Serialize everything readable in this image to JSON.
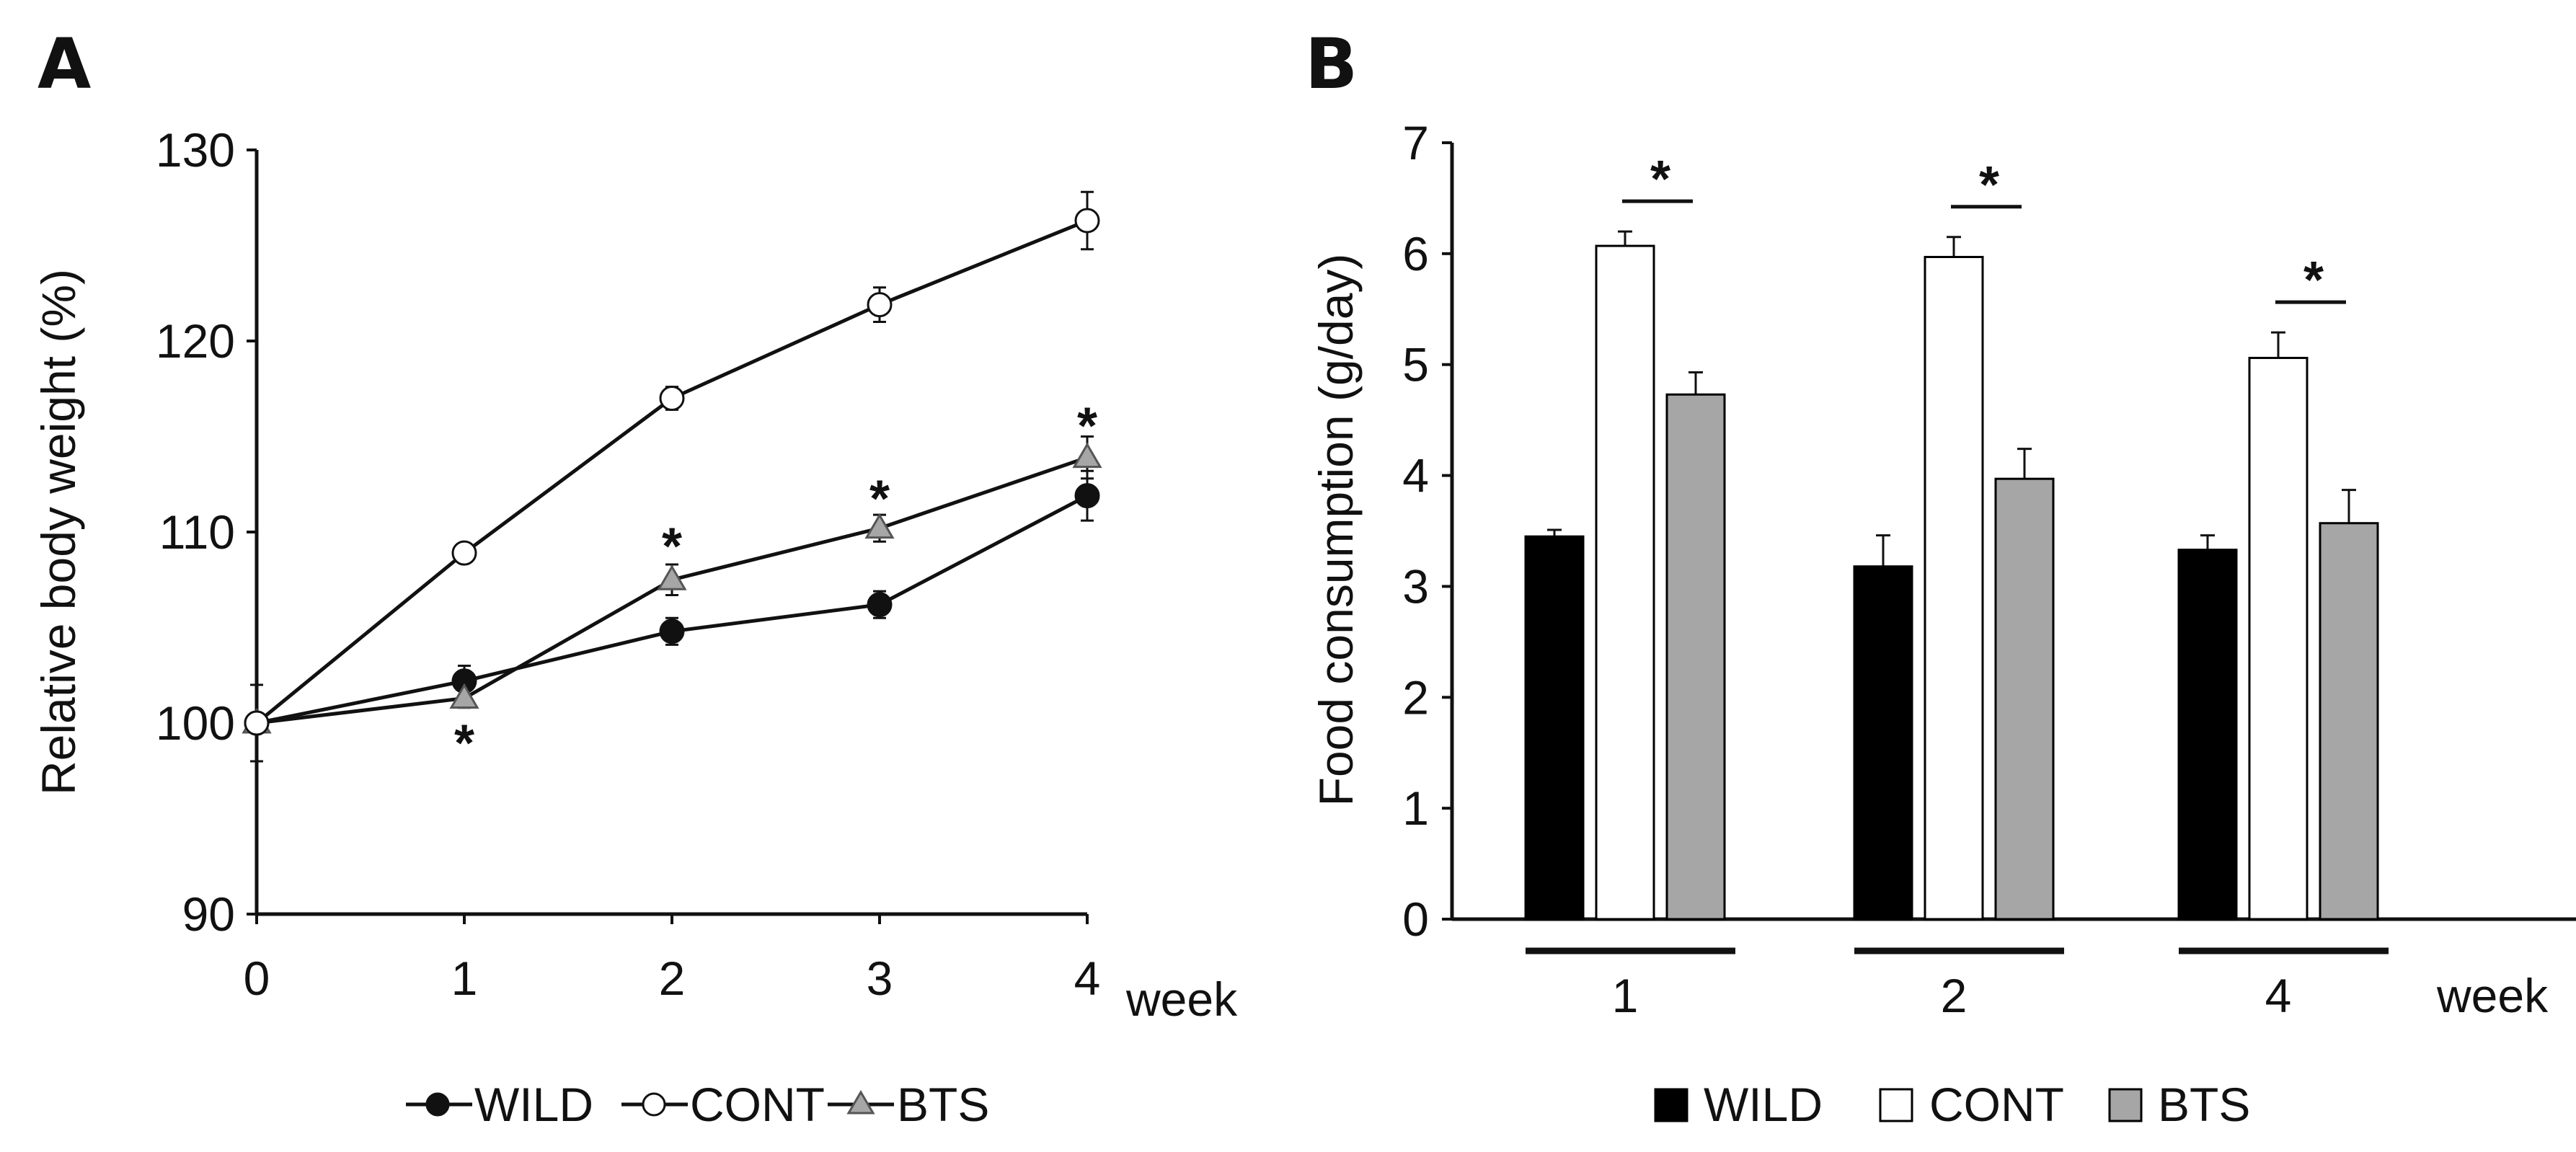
{
  "chart_data": [
    {
      "panel": "A",
      "type": "line",
      "xlabel": "week",
      "ylabel": "Relative body weight (%)",
      "ylim": [
        90,
        130
      ],
      "yticks": [
        90,
        100,
        110,
        120,
        130
      ],
      "xlim": [
        0,
        4
      ],
      "x": [
        0,
        1,
        2,
        3,
        4
      ],
      "x_tick_labels": [
        "0",
        "1",
        "2",
        "3",
        "4"
      ],
      "legend_position": "bottom-center",
      "series": [
        {
          "name": "WILD",
          "marker": "filled-circle",
          "color": "#111111",
          "values": [
            100,
            102.2,
            104.8,
            106.2,
            111.9
          ],
          "errors": [
            2.0,
            0.8,
            0.7,
            0.7,
            1.3
          ]
        },
        {
          "name": "CONT",
          "marker": "open-circle",
          "color": "#ffffff",
          "values": [
            100,
            108.9,
            117.0,
            121.9,
            126.3
          ],
          "errors": [
            2.0,
            0.3,
            0.6,
            0.9,
            1.5
          ]
        },
        {
          "name": "BTS",
          "marker": "gray-triangle",
          "color": "#a6a6a6",
          "values": [
            100,
            101.3,
            107.5,
            110.2,
            113.9
          ],
          "errors": [
            2.0,
            0.5,
            0.8,
            0.7,
            1.1
          ]
        }
      ],
      "annotations": [
        {
          "text": "*",
          "x": 1,
          "y": 99.3
        },
        {
          "text": "*",
          "x": 2,
          "y": 109.6
        },
        {
          "text": "*",
          "x": 3,
          "y": 112.1
        },
        {
          "text": "*",
          "x": 4,
          "y": 115.9
        }
      ]
    },
    {
      "panel": "B",
      "type": "bar",
      "xlabel": "week",
      "ylabel": "Food consumption (g/day)",
      "ylim": [
        0,
        7
      ],
      "yticks": [
        0,
        1,
        2,
        3,
        4,
        5,
        6,
        7
      ],
      "categories": [
        "1",
        "2",
        "4"
      ],
      "legend_position": "bottom-center",
      "series": [
        {
          "name": "WILD",
          "color": "#000000",
          "values": [
            3.45,
            3.18,
            3.33
          ],
          "errors": [
            0.06,
            0.28,
            0.13
          ]
        },
        {
          "name": "CONT",
          "color": "#ffffff",
          "values": [
            6.07,
            5.97,
            5.06
          ],
          "errors": [
            0.13,
            0.18,
            0.23
          ]
        },
        {
          "name": "BTS",
          "color": "#a6a6a6",
          "values": [
            4.73,
            3.97,
            3.57
          ],
          "errors": [
            0.2,
            0.27,
            0.3
          ]
        }
      ],
      "annotations": [
        {
          "text": "*",
          "category": "1",
          "between": [
            "CONT",
            "BTS"
          ]
        },
        {
          "text": "*",
          "category": "2",
          "between": [
            "CONT",
            "BTS"
          ]
        },
        {
          "text": "*",
          "category": "4",
          "between": [
            "CONT",
            "BTS"
          ]
        }
      ]
    }
  ]
}
